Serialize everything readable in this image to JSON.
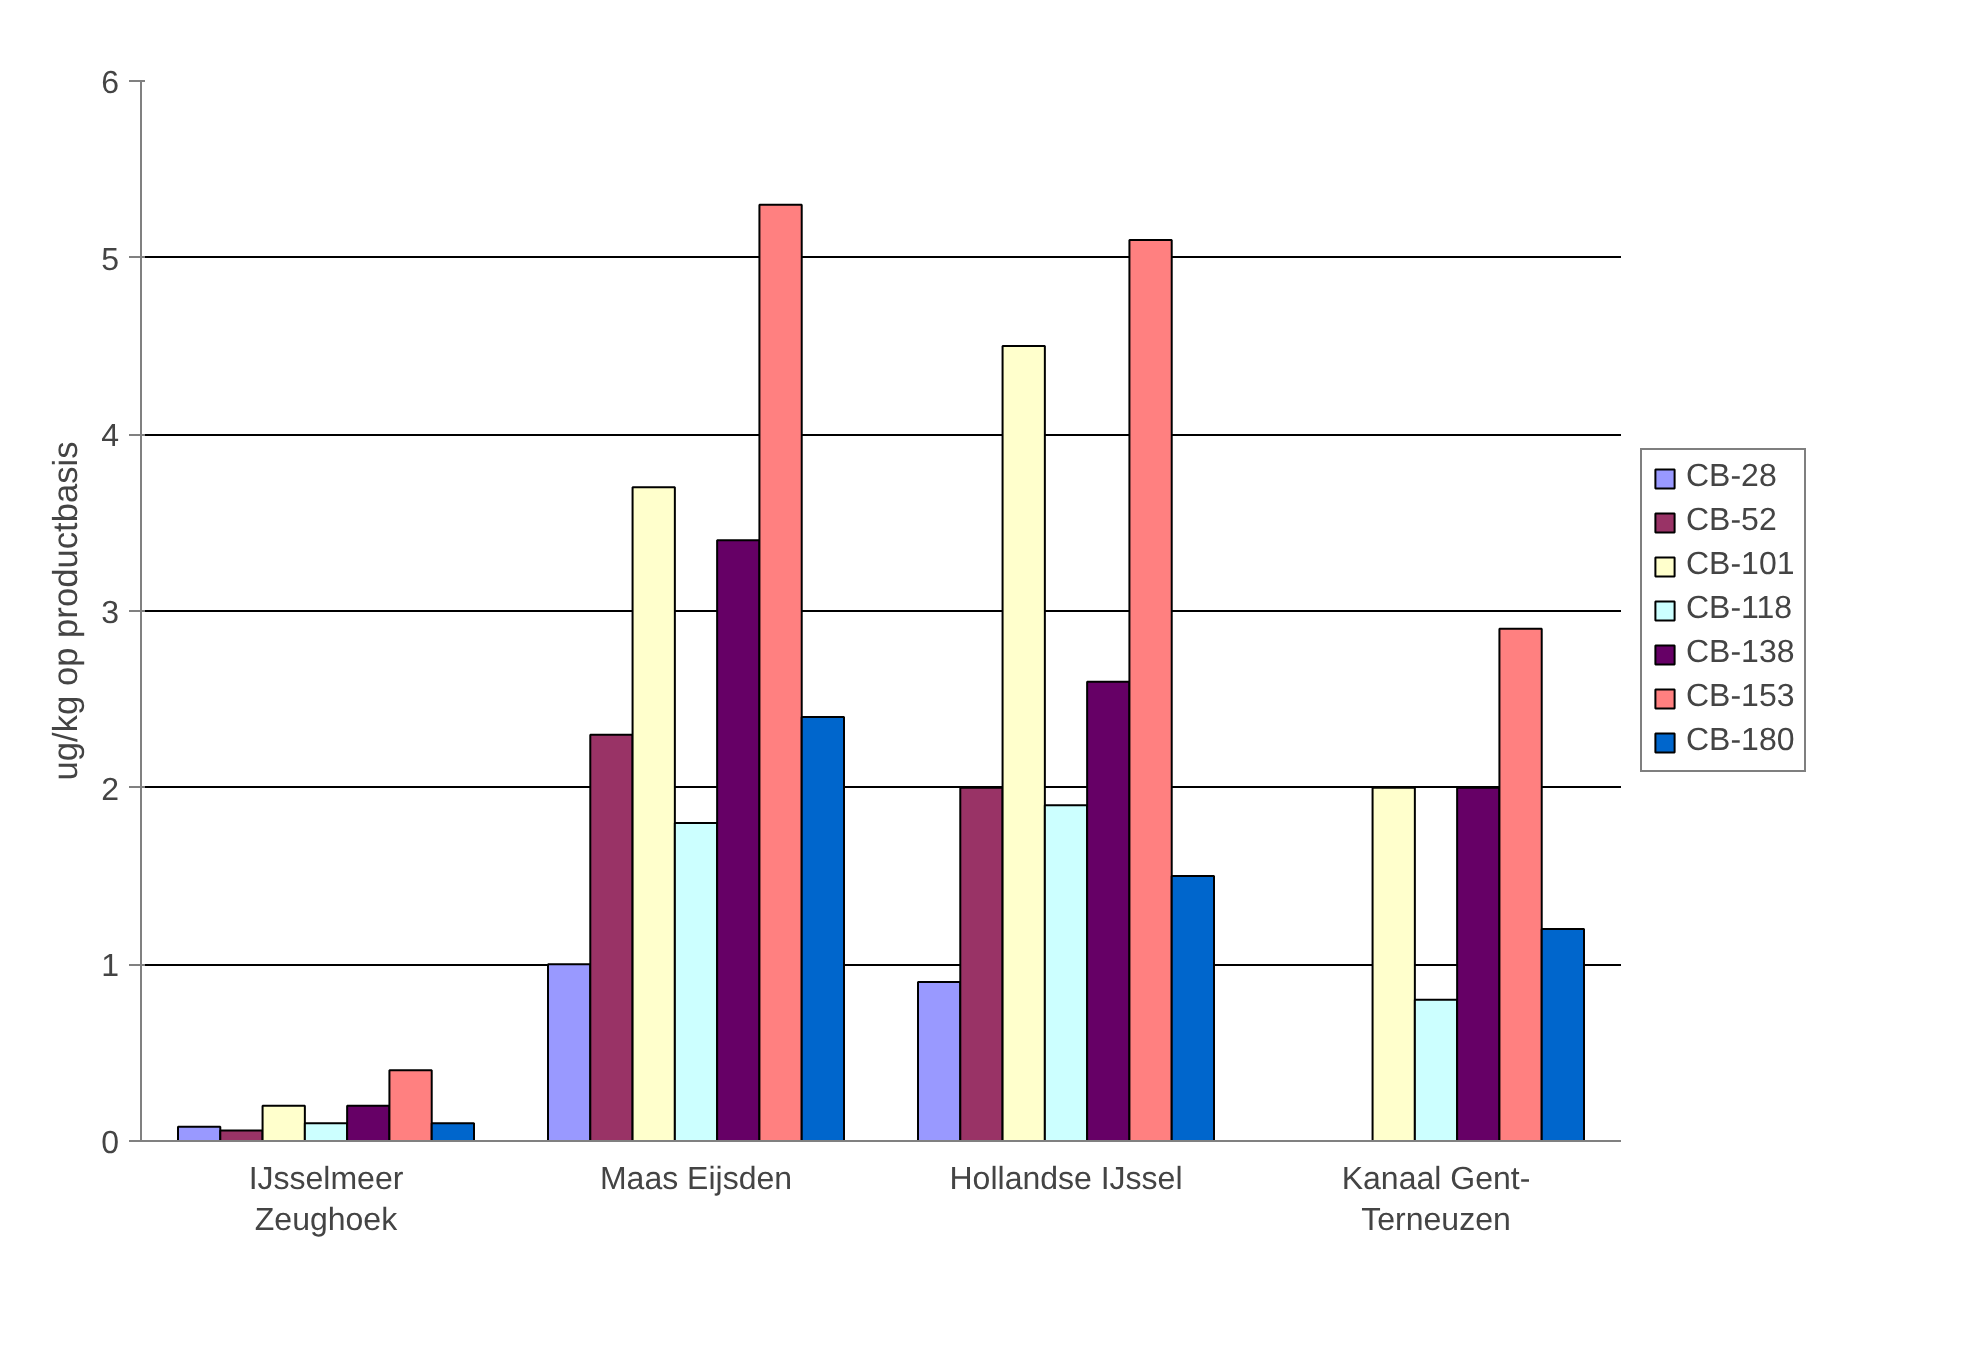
{
  "chart_data": {
    "type": "bar",
    "ylabel": "ug/kg op productbasis",
    "categories": [
      "IJsselmeer\nZeughoek",
      "Maas Eijsden",
      "Hollandse IJssel",
      "Kanaal Gent-\nTerneuzen"
    ],
    "series": [
      {
        "name": "CB-28",
        "color": "#9999ff",
        "values": [
          0.08,
          1.0,
          0.9,
          null
        ]
      },
      {
        "name": "CB-52",
        "color": "#993366",
        "values": [
          0.06,
          2.3,
          2.0,
          null
        ]
      },
      {
        "name": "CB-101",
        "color": "#ffffcc",
        "values": [
          0.2,
          3.7,
          4.5,
          2.0
        ]
      },
      {
        "name": "CB-118",
        "color": "#ccffff",
        "values": [
          0.1,
          1.8,
          1.9,
          0.8
        ]
      },
      {
        "name": "CB-138",
        "color": "#660066",
        "values": [
          0.2,
          3.4,
          2.6,
          2.0
        ]
      },
      {
        "name": "CB-153",
        "color": "#ff8080",
        "values": [
          0.4,
          5.3,
          5.1,
          2.9
        ]
      },
      {
        "name": "CB-180",
        "color": "#0066cc",
        "values": [
          0.1,
          2.4,
          1.5,
          1.2
        ]
      }
    ],
    "ylim": [
      0,
      6
    ],
    "yticks": [
      0,
      1,
      2,
      3,
      4,
      5,
      6
    ],
    "grid": "y",
    "legend": "right"
  }
}
